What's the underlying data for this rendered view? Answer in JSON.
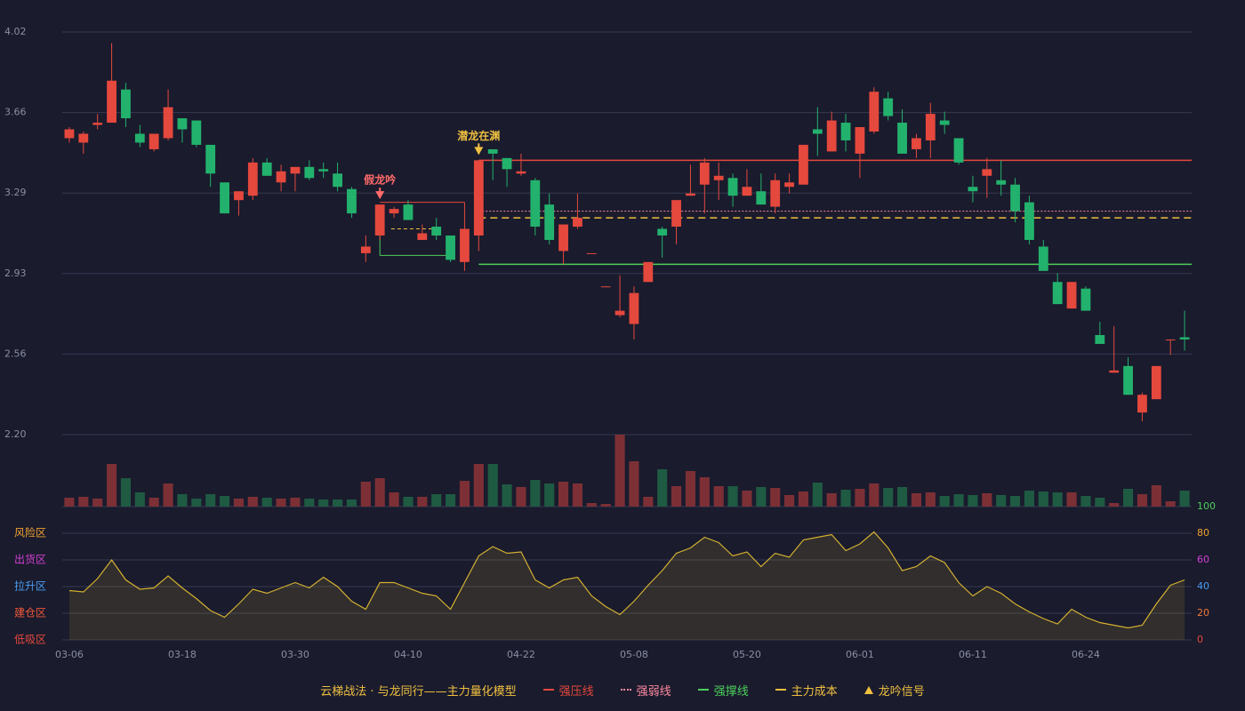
{
  "chart_data": {
    "type": "candlestick",
    "categories": [
      "03-06",
      null,
      null,
      null,
      null,
      null,
      null,
      null,
      "03-18",
      null,
      null,
      null,
      null,
      null,
      null,
      null,
      "03-30",
      null,
      null,
      null,
      null,
      null,
      null,
      null,
      "04-10",
      null,
      null,
      null,
      null,
      null,
      null,
      null,
      "04-22",
      null,
      null,
      null,
      null,
      null,
      null,
      null,
      "05-08",
      null,
      null,
      null,
      null,
      null,
      null,
      null,
      "05-20",
      null,
      null,
      null,
      null,
      null,
      null,
      null,
      "06-01",
      null,
      null,
      null,
      null,
      null,
      null,
      null,
      "06-11",
      null,
      null,
      null,
      null,
      null,
      null,
      null,
      "06-24",
      null,
      null,
      null,
      null,
      null,
      null,
      null
    ],
    "open": [
      3.54,
      3.52,
      3.6,
      3.61,
      3.76,
      3.56,
      3.49,
      3.54,
      3.63,
      3.62,
      3.51,
      3.34,
      3.26,
      3.28,
      3.43,
      3.34,
      3.38,
      3.41,
      3.4,
      3.38,
      3.31,
      3.02,
      3.1,
      3.2,
      3.24,
      3.08,
      3.14,
      3.1,
      2.98,
      3.1,
      3.49,
      3.45,
      3.38,
      3.35,
      3.24,
      3.03,
      3.14,
      3.02,
      2.87,
      2.74,
      2.7,
      2.89,
      3.13,
      3.14,
      3.28,
      3.33,
      3.35,
      3.36,
      3.28,
      3.3,
      3.23,
      3.32,
      3.33,
      3.58,
      3.48,
      3.61,
      3.47,
      3.57,
      3.72,
      3.61,
      3.49,
      3.53,
      3.62,
      3.54,
      3.32,
      3.37,
      3.35,
      3.33,
      3.25,
      3.05,
      2.89,
      2.77,
      2.86,
      2.65,
      2.48,
      2.51,
      2.3,
      2.36,
      2.63,
      2.64
    ],
    "close": [
      3.58,
      3.56,
      3.61,
      3.8,
      3.63,
      3.52,
      3.56,
      3.68,
      3.58,
      3.51,
      3.38,
      3.2,
      3.3,
      3.43,
      3.37,
      3.39,
      3.41,
      3.36,
      3.39,
      3.32,
      3.2,
      3.05,
      3.24,
      3.22,
      3.17,
      3.11,
      3.1,
      2.99,
      3.13,
      3.44,
      3.47,
      3.4,
      3.39,
      3.14,
      3.08,
      3.15,
      3.18,
      3.02,
      2.87,
      2.76,
      2.84,
      2.98,
      3.1,
      3.26,
      3.29,
      3.43,
      3.37,
      3.28,
      3.32,
      3.24,
      3.35,
      3.34,
      3.51,
      3.56,
      3.62,
      3.53,
      3.59,
      3.75,
      3.64,
      3.47,
      3.54,
      3.65,
      3.6,
      3.43,
      3.3,
      3.4,
      3.33,
      3.21,
      3.08,
      2.94,
      2.79,
      2.89,
      2.76,
      2.61,
      2.49,
      2.38,
      2.38,
      2.51,
      2.63,
      2.63
    ],
    "low": [
      3.52,
      3.47,
      3.58,
      3.61,
      3.59,
      3.5,
      3.48,
      3.53,
      3.52,
      3.5,
      3.32,
      3.2,
      3.19,
      3.26,
      3.37,
      3.3,
      3.3,
      3.35,
      3.36,
      3.3,
      3.18,
      2.98,
      3.08,
      3.18,
      3.17,
      3.08,
      3.08,
      2.98,
      2.94,
      3.03,
      3.35,
      3.32,
      3.37,
      3.1,
      3.06,
      2.97,
      3.13,
      3.02,
      2.87,
      2.73,
      2.63,
      2.89,
      3.0,
      3.06,
      3.28,
      3.2,
      3.26,
      3.23,
      3.28,
      3.24,
      3.2,
      3.29,
      3.33,
      3.46,
      3.48,
      3.48,
      3.36,
      3.56,
      3.62,
      3.47,
      3.45,
      3.45,
      3.56,
      3.42,
      3.25,
      3.27,
      3.28,
      3.16,
      3.06,
      2.94,
      2.79,
      2.77,
      2.76,
      2.61,
      2.48,
      2.38,
      2.26,
      2.36,
      2.56,
      2.58
    ],
    "high": [
      3.59,
      3.57,
      3.65,
      3.97,
      3.79,
      3.6,
      3.56,
      3.76,
      3.63,
      3.62,
      3.51,
      3.34,
      3.3,
      3.45,
      3.45,
      3.42,
      3.41,
      3.44,
      3.43,
      3.43,
      3.32,
      3.1,
      3.24,
      3.23,
      3.26,
      3.15,
      3.18,
      3.1,
      3.13,
      3.44,
      3.49,
      3.45,
      3.47,
      3.36,
      3.29,
      3.15,
      3.29,
      3.02,
      2.87,
      2.92,
      2.87,
      2.98,
      3.14,
      3.26,
      3.42,
      3.45,
      3.43,
      3.38,
      3.4,
      3.38,
      3.38,
      3.38,
      3.51,
      3.68,
      3.66,
      3.65,
      3.59,
      3.77,
      3.75,
      3.67,
      3.56,
      3.7,
      3.66,
      3.54,
      3.37,
      3.45,
      3.44,
      3.36,
      3.28,
      3.08,
      2.93,
      2.89,
      2.87,
      2.71,
      2.69,
      2.55,
      2.39,
      2.51,
      2.63,
      2.76
    ],
    "up_color": "#e5483d",
    "down_color": "#23b26d",
    "ylim": [
      2.2,
      4.02
    ],
    "yticks": [
      4.02,
      {
        "value": 3.656,
        "label": "3.66"
      },
      {
        "value": 3.292,
        "label": "3.29"
      },
      {
        "value": 2.928,
        "label": "2.93"
      },
      {
        "value": 2.564,
        "label": "2.56"
      },
      {
        "value": 2.2,
        "label": "2.20"
      }
    ],
    "grid": true,
    "volume": {
      "values": [
        10,
        11,
        9,
        48,
        32,
        16,
        10,
        26,
        14,
        9,
        14,
        12,
        9,
        11,
        10,
        9,
        10,
        9,
        8,
        8,
        8,
        28,
        32,
        16,
        11,
        11,
        14,
        14,
        29,
        48,
        48,
        25,
        22,
        30,
        26,
        28,
        26,
        4,
        3,
        81,
        51,
        11,
        42,
        23,
        40,
        33,
        23,
        23,
        18,
        22,
        21,
        13,
        17,
        27,
        15,
        19,
        20,
        26,
        21,
        22,
        15,
        16,
        12,
        14,
        13,
        15,
        13,
        12,
        18,
        17,
        16,
        16,
        12,
        10,
        4,
        20,
        14,
        24,
        6,
        18
      ],
      "up_color": "#7c3036",
      "down_color": "#1f5a43"
    },
    "lines": [
      {
        "name": "强压线",
        "value": 3.44,
        "color": "#e5483d",
        "style": "solid",
        "from": 29
      },
      {
        "name": "强弱线",
        "value": 3.21,
        "color": "#ff8aa0",
        "style": "dotted",
        "from": 29
      },
      {
        "name": "强撑线",
        "value": 2.97,
        "color": "#4ccf5a",
        "style": "solid",
        "from": 29
      },
      {
        "name": "主力成本",
        "value": 3.18,
        "color": "#f0c040",
        "style": "dashed",
        "from": 29
      }
    ],
    "zone": {
      "from": 22,
      "to": 28,
      "top": 3.25,
      "bottom": 3.01,
      "mid": 3.13,
      "top_color": "#e5483d",
      "bottom_color": "#4ccf5a",
      "mid_color": "#f0c040"
    },
    "signals": [
      {
        "index": 22,
        "label": "假龙吟",
        "color": "#ff6b6b"
      },
      {
        "index": 29,
        "label": "潜龙在渊",
        "color": "#f0c040"
      }
    ],
    "signal_legend": "龙吟信号",
    "signal_color": "#f0c040",
    "legend_title": "云梯战法 · 与龙同行——主力量化模型",
    "legend_title_color": "#f0c040",
    "oscillator": {
      "values": [
        37,
        36,
        46,
        60,
        45,
        38,
        39,
        48,
        39,
        31,
        22,
        17,
        27,
        38,
        35,
        39,
        43,
        39,
        47,
        40,
        29,
        23,
        43,
        43,
        39,
        35,
        33,
        23,
        43,
        63,
        70,
        65,
        66,
        45,
        39,
        45,
        47,
        33,
        25,
        19,
        29,
        41,
        52,
        65,
        69,
        77,
        73,
        63,
        66,
        55,
        65,
        62,
        75,
        77,
        79,
        67,
        72,
        81,
        69,
        52,
        55,
        63,
        58,
        43,
        33,
        40,
        35,
        27,
        21,
        16,
        12,
        23,
        17,
        13,
        11,
        9,
        11,
        27,
        41,
        45
      ],
      "color": "#d4b030",
      "ylim": [
        0,
        100
      ],
      "yticks": [
        0,
        20,
        40,
        60,
        80,
        100
      ],
      "ytick_colors": [
        "#e5483d",
        "#f07838",
        "#4a9cf0",
        "#d040d0",
        "#f0a030",
        "#4ccf5a"
      ],
      "zones": [
        {
          "value": 80,
          "label": "风险区",
          "color": "#f0a030"
        },
        {
          "value": 60,
          "label": "出货区",
          "color": "#d040d0"
        },
        {
          "value": 40,
          "label": "拉升区",
          "color": "#4a9cf0"
        },
        {
          "value": 20,
          "label": "建仓区",
          "color": "#f05838"
        },
        {
          "value": 0,
          "label": "低吸区",
          "color": "#e5483d"
        }
      ]
    }
  }
}
